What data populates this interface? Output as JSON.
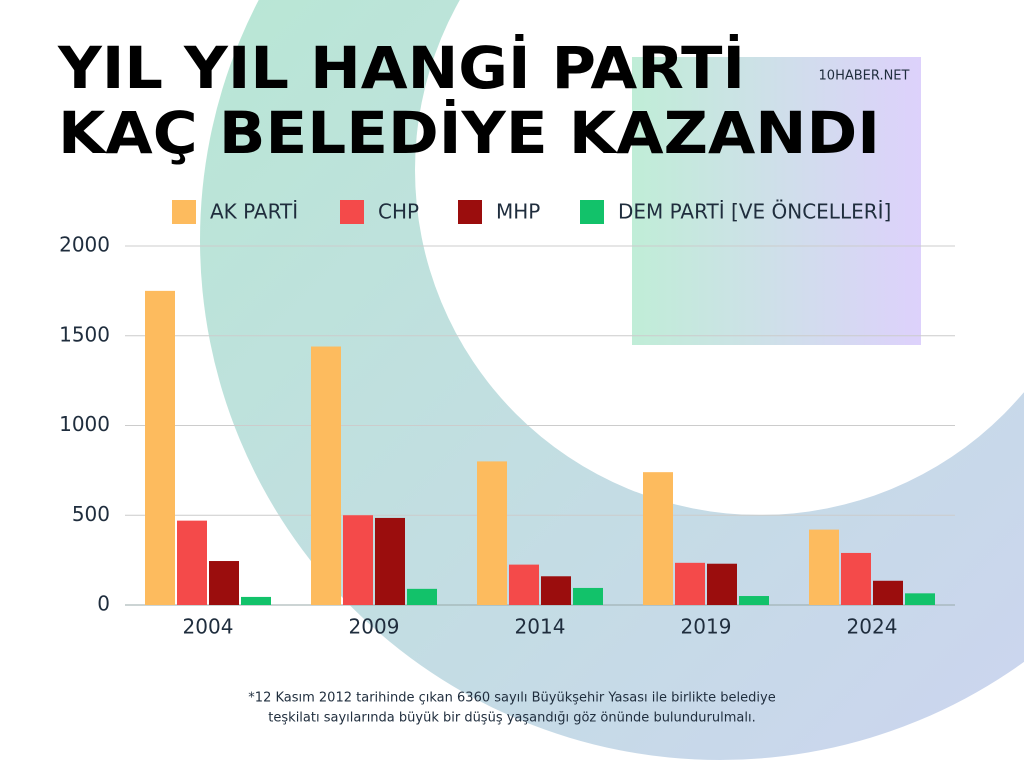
{
  "chart_data": {
    "type": "bar",
    "title_lines": [
      "YIL YIL HANGİ PARTİ",
      "KAÇ BELEDİYE KAZANDI"
    ],
    "source": "10HABER.NET",
    "footnote_lines": [
      "*12 Kasım 2012 tarihinde çıkan 6360 sayılı Büyükşehir Yasası ile birlikte belediye",
      "teşkilatı sayılarında büyük bir düşüş yaşandığı göz önünde bulundurulmalı."
    ],
    "categories": [
      "2004",
      "2009",
      "2014",
      "2019",
      "2024"
    ],
    "series": [
      {
        "name": "AK PARTİ",
        "color": "#fdbb5e",
        "values": [
          1750,
          1440,
          800,
          740,
          420
        ]
      },
      {
        "name": "CHP",
        "color": "#f44a4a",
        "values": [
          470,
          500,
          225,
          235,
          290
        ]
      },
      {
        "name": "MHP",
        "color": "#9b0d0d",
        "values": [
          245,
          485,
          160,
          230,
          135
        ]
      },
      {
        "name": "DEM PARTİ [VE ÖNCELLERİ]",
        "color": "#12c26a",
        "values": [
          45,
          90,
          95,
          50,
          65
        ]
      }
    ],
    "ylim": [
      0,
      2000
    ],
    "yticks": [
      0,
      500,
      1000,
      1500,
      2000
    ],
    "grid": true,
    "legend": "top"
  }
}
